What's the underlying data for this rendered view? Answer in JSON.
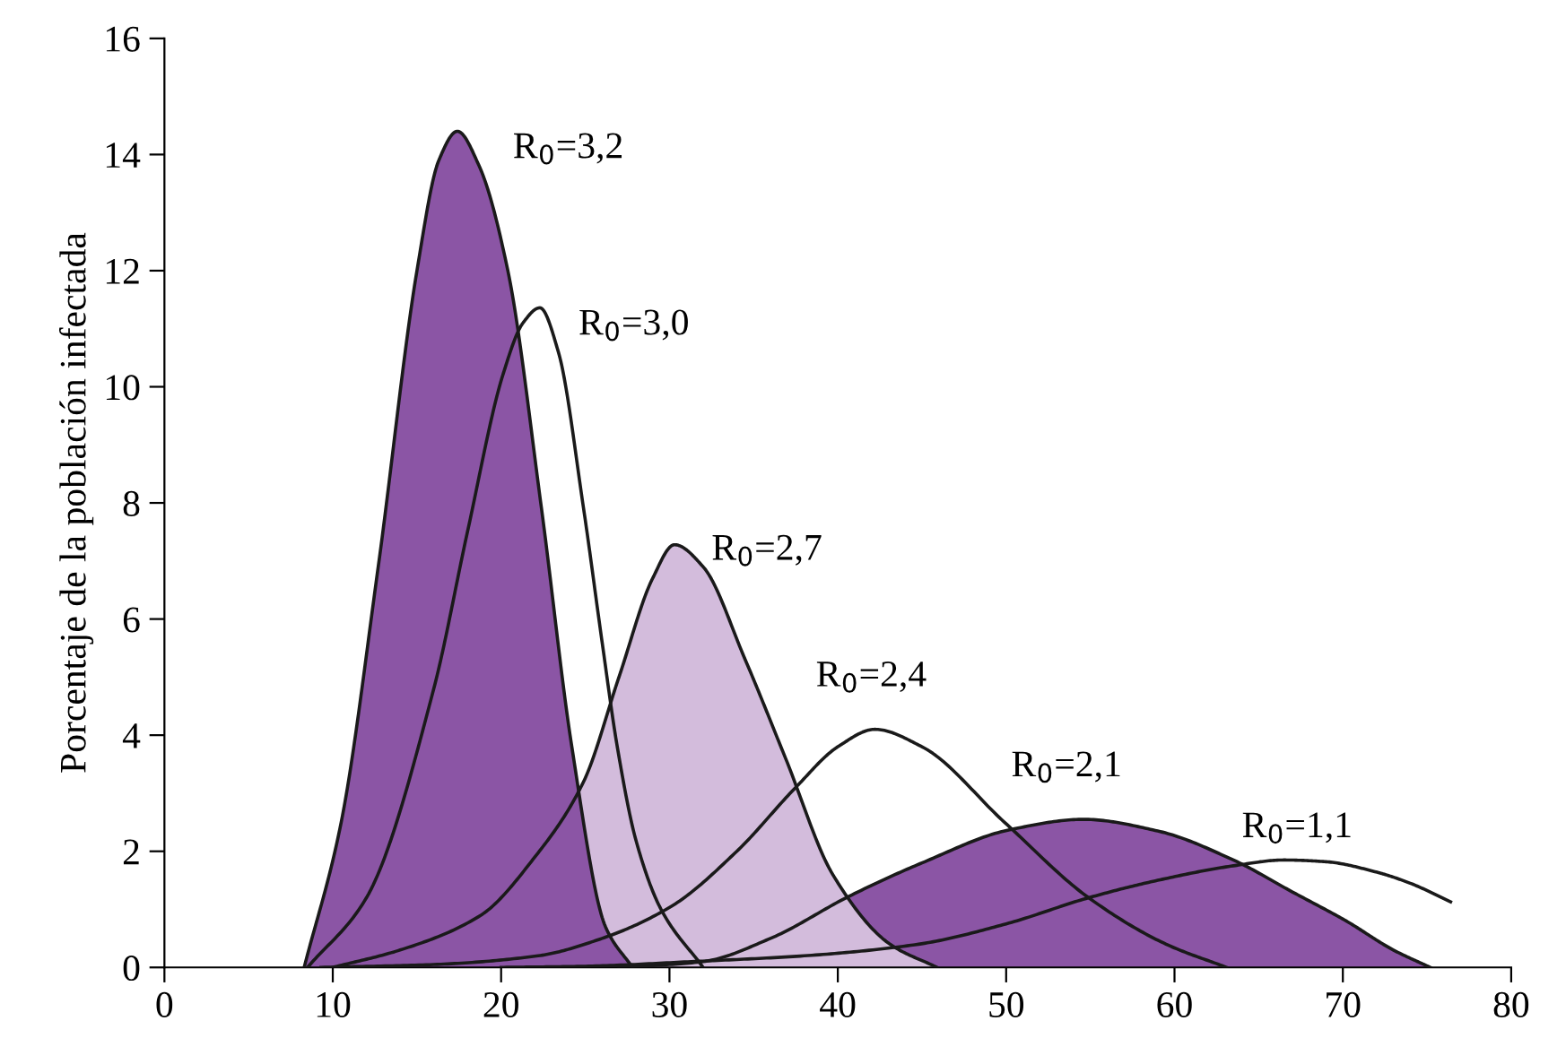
{
  "chart_data": {
    "type": "area",
    "ylabel": "Porcentaje de la población infectada",
    "xlim": [
      0,
      80
    ],
    "ylim": [
      0,
      16
    ],
    "xticks": [
      0,
      10,
      20,
      30,
      40,
      50,
      60,
      70,
      80
    ],
    "yticks": [
      0,
      2,
      4,
      6,
      8,
      10,
      12,
      14,
      16
    ],
    "grid": false,
    "legend": false,
    "marker": "none",
    "line_style": "solid",
    "series": [
      {
        "name": "R$_{0}$=2,1",
        "color": "#8b55a5",
        "x": [
          27,
          32,
          36,
          40.7,
          45,
          50.2,
          54.6,
          59,
          63.5,
          67,
          70.2,
          73,
          75.2
        ],
        "values": [
          0,
          0.1,
          0.5,
          1.23,
          1.8,
          2.37,
          2.55,
          2.35,
          1.85,
          1.3,
          0.8,
          0.3,
          0
        ]
      },
      {
        "name": "R$_{0}$=1,1",
        "type": "line",
        "color": "#1a1a1a",
        "x": [
          20,
          25,
          31.3,
          38,
          44.8,
          50,
          54.9,
          59,
          63.5,
          66.5,
          69,
          71.9,
          74,
          76.4
        ],
        "values": [
          0,
          0.02,
          0.1,
          0.2,
          0.4,
          0.75,
          1.2,
          1.5,
          1.75,
          1.85,
          1.82,
          1.65,
          1.45,
          1.13
        ]
      },
      {
        "name": "R$_{0}$=2,7",
        "color": "#d3bcdc",
        "x": [
          10,
          14,
          18.8,
          22,
          24.9,
          27,
          29,
          30.3,
          32,
          34.5,
          36.9,
          39.7,
          43.1,
          45.9
        ],
        "values": [
          0,
          0.3,
          0.9,
          1.9,
          3.2,
          5.0,
          6.7,
          7.28,
          6.9,
          5.3,
          3.6,
          1.6,
          0.4,
          0
        ]
      },
      {
        "name": "R$_{0}$=2,4",
        "type": "line",
        "color": "#1a1a1a",
        "x": [
          9.3,
          16,
          22.2,
          26,
          30.1,
          34,
          37.5,
          40,
          42.2,
          45,
          49.9,
          54.9,
          59.5,
          63.1
        ],
        "values": [
          0,
          0.05,
          0.2,
          0.5,
          1.05,
          2.0,
          3.1,
          3.8,
          4.1,
          3.8,
          2.5,
          1.2,
          0.4,
          0
        ]
      },
      {
        "name": "R$_{0}$=3,0",
        "type": "line",
        "color": "#1a1a1a",
        "x": [
          8.5,
          12,
          16,
          18,
          20.1,
          21.3,
          22.3,
          23.4,
          24.9,
          26,
          26.9,
          28,
          29.5,
          32
        ],
        "values": [
          0,
          1.2,
          4.8,
          7.5,
          10.2,
          11.1,
          11.36,
          10.6,
          7.9,
          5.6,
          3.8,
          2.2,
          1.0,
          0
        ]
      },
      {
        "name": "R$_{0}$=3,2",
        "color": "#8b55a5",
        "x": [
          8.3,
          10.5,
          12.7,
          15,
          16.3,
          17.4,
          18.7,
          20.4,
          22.4,
          24.2,
          26.2,
          27.8
        ],
        "values": [
          0,
          2.5,
          6.9,
          12.0,
          13.9,
          14.4,
          13.8,
          12.0,
          7.9,
          3.8,
          0.7,
          0
        ]
      }
    ]
  }
}
